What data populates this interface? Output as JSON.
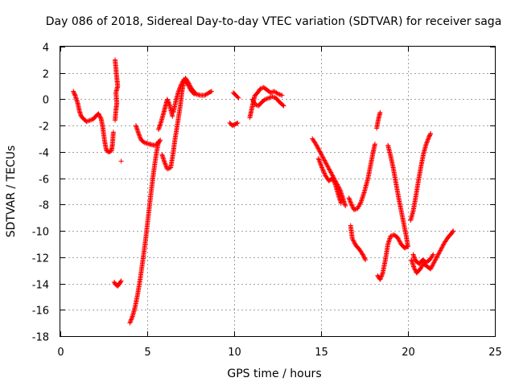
{
  "chart_data": {
    "type": "scatter",
    "title": "Day 086 of 2018, Sidereal Day-to-day VTEC variation (SDTVAR) for receiver saga",
    "xlabel": "GPS time / hours",
    "ylabel": "SDTVAR / TECUs",
    "xlim": [
      0,
      25
    ],
    "ylim": [
      -18,
      4
    ],
    "xticks": [
      0,
      5,
      10,
      15,
      20,
      25
    ],
    "yticks": [
      4,
      2,
      0,
      -2,
      -4,
      -6,
      -8,
      -10,
      -12,
      -14,
      -16,
      -18
    ],
    "grid": true,
    "marker": "+",
    "color": "#ff0000",
    "series": [
      {
        "segments": [
          [
            [
              0.75,
              0.6
            ],
            [
              0.85,
              0.3
            ],
            [
              1.0,
              -0.3
            ],
            [
              1.1,
              -0.9
            ],
            [
              1.2,
              -1.3
            ],
            [
              1.35,
              -1.5
            ],
            [
              1.5,
              -1.7
            ],
            [
              1.7,
              -1.6
            ],
            [
              1.9,
              -1.5
            ],
            [
              2.1,
              -1.2
            ],
            [
              2.2,
              -1.1
            ],
            [
              2.35,
              -1.5
            ],
            [
              2.45,
              -2.2
            ],
            [
              2.55,
              -3.2
            ],
            [
              2.65,
              -3.9
            ],
            [
              2.8,
              -4.0
            ],
            [
              2.95,
              -3.9
            ],
            [
              3.0,
              -3.4
            ],
            [
              3.05,
              -2.5
            ]
          ],
          [
            [
              3.15,
              3.0
            ],
            [
              3.2,
              2.3
            ],
            [
              3.25,
              1.6
            ],
            [
              3.3,
              1.0
            ],
            [
              3.2,
              0.5
            ],
            [
              3.25,
              -0.3
            ],
            [
              3.2,
              -0.8
            ],
            [
              3.15,
              -1.6
            ]
          ],
          [
            [
              3.5,
              -4.7
            ]
          ],
          [
            [
              3.1,
              -13.9
            ],
            [
              3.2,
              -14.1
            ],
            [
              3.3,
              -14.2
            ],
            [
              3.4,
              -14.0
            ],
            [
              3.5,
              -13.8
            ]
          ],
          [
            [
              4.0,
              -17.0
            ],
            [
              4.15,
              -16.5
            ],
            [
              4.3,
              -15.8
            ],
            [
              4.45,
              -14.8
            ],
            [
              4.6,
              -13.6
            ],
            [
              4.75,
              -12.2
            ],
            [
              4.9,
              -10.7
            ],
            [
              5.05,
              -9.0
            ],
            [
              5.2,
              -7.3
            ],
            [
              5.35,
              -5.7
            ],
            [
              5.5,
              -4.3
            ],
            [
              5.65,
              -3.2
            ]
          ],
          [
            [
              4.35,
              -2.0
            ],
            [
              4.5,
              -2.6
            ],
            [
              4.65,
              -3.1
            ],
            [
              4.85,
              -3.3
            ],
            [
              5.1,
              -3.4
            ],
            [
              5.4,
              -3.5
            ],
            [
              5.6,
              -3.4
            ],
            [
              5.75,
              -3.1
            ]
          ],
          [
            [
              5.65,
              -2.3
            ],
            [
              5.8,
              -1.7
            ],
            [
              5.95,
              -1.0
            ],
            [
              6.05,
              -0.5
            ],
            [
              6.15,
              0.0
            ],
            [
              6.3,
              -0.5
            ],
            [
              6.45,
              -1.3
            ]
          ],
          [
            [
              5.85,
              -4.2
            ],
            [
              6.0,
              -4.8
            ],
            [
              6.15,
              -5.3
            ],
            [
              6.35,
              -5.2
            ],
            [
              6.5,
              -4.0
            ],
            [
              6.6,
              -3.0
            ],
            [
              6.75,
              -1.8
            ],
            [
              6.9,
              -0.5
            ],
            [
              7.0,
              0.6
            ],
            [
              7.1,
              1.3
            ],
            [
              7.2,
              1.6
            ],
            [
              7.35,
              1.3
            ],
            [
              7.55,
              0.8
            ],
            [
              7.8,
              0.4
            ],
            [
              8.05,
              0.3
            ],
            [
              8.3,
              0.3
            ],
            [
              8.55,
              0.5
            ],
            [
              8.7,
              0.6
            ]
          ],
          [
            [
              6.5,
              -1.0
            ],
            [
              6.65,
              -0.1
            ],
            [
              6.8,
              0.6
            ],
            [
              6.95,
              1.1
            ],
            [
              7.1,
              1.5
            ],
            [
              7.3,
              1.2
            ],
            [
              7.5,
              0.7
            ],
            [
              7.7,
              0.4
            ]
          ],
          [
            [
              9.75,
              -1.8
            ],
            [
              9.9,
              -2.0
            ],
            [
              10.05,
              -1.9
            ],
            [
              10.2,
              -1.8
            ]
          ],
          [
            [
              9.95,
              0.5
            ],
            [
              10.1,
              0.3
            ],
            [
              10.25,
              0.1
            ]
          ],
          [
            [
              10.9,
              -1.4
            ],
            [
              11.0,
              -0.8
            ],
            [
              11.1,
              -0.2
            ],
            [
              11.2,
              0.3
            ],
            [
              11.35,
              0.5
            ],
            [
              11.5,
              0.8
            ],
            [
              11.7,
              0.9
            ],
            [
              11.9,
              0.7
            ],
            [
              12.1,
              0.5
            ],
            [
              12.3,
              0.6
            ],
            [
              12.55,
              0.4
            ],
            [
              12.75,
              0.3
            ]
          ],
          [
            [
              11.05,
              0.0
            ],
            [
              11.2,
              -0.4
            ],
            [
              11.4,
              -0.5
            ],
            [
              11.6,
              -0.2
            ],
            [
              11.8,
              0.0
            ],
            [
              12.0,
              0.1
            ],
            [
              12.2,
              0.2
            ],
            [
              12.4,
              0.1
            ],
            [
              12.6,
              -0.2
            ],
            [
              12.85,
              -0.5
            ]
          ],
          [
            [
              14.5,
              -3.0
            ],
            [
              14.7,
              -3.4
            ],
            [
              14.9,
              -3.9
            ],
            [
              15.1,
              -4.4
            ],
            [
              15.3,
              -4.9
            ],
            [
              15.5,
              -5.4
            ],
            [
              15.7,
              -5.9
            ],
            [
              15.9,
              -6.4
            ],
            [
              16.1,
              -6.9
            ],
            [
              16.25,
              -7.5
            ],
            [
              16.4,
              -8.1
            ]
          ],
          [
            [
              14.85,
              -4.5
            ],
            [
              15.05,
              -5.2
            ],
            [
              15.25,
              -5.8
            ],
            [
              15.45,
              -6.2
            ],
            [
              15.65,
              -6.0
            ],
            [
              15.8,
              -6.4
            ],
            [
              16.0,
              -7.3
            ],
            [
              16.15,
              -7.9
            ]
          ],
          [
            [
              16.6,
              -7.5
            ],
            [
              16.75,
              -8.0
            ],
            [
              16.9,
              -8.4
            ],
            [
              17.1,
              -8.3
            ],
            [
              17.3,
              -7.8
            ],
            [
              17.5,
              -7.0
            ],
            [
              17.7,
              -6.0
            ],
            [
              17.85,
              -5.0
            ],
            [
              18.0,
              -4.0
            ],
            [
              18.1,
              -3.4
            ]
          ],
          [
            [
              16.7,
              -9.6
            ],
            [
              16.8,
              -10.6
            ],
            [
              17.0,
              -11.1
            ],
            [
              17.2,
              -11.4
            ],
            [
              17.4,
              -11.8
            ],
            [
              17.55,
              -12.2
            ]
          ],
          [
            [
              18.2,
              -2.2
            ],
            [
              18.3,
              -1.5
            ],
            [
              18.4,
              -1.0
            ]
          ],
          [
            [
              18.25,
              -13.4
            ],
            [
              18.4,
              -13.7
            ],
            [
              18.55,
              -13.2
            ],
            [
              18.7,
              -12.2
            ],
            [
              18.85,
              -11.0
            ],
            [
              19.0,
              -10.4
            ],
            [
              19.2,
              -10.3
            ],
            [
              19.4,
              -10.5
            ],
            [
              19.6,
              -11.0
            ],
            [
              19.8,
              -11.3
            ],
            [
              19.95,
              -11.2
            ]
          ],
          [
            [
              18.85,
              -3.5
            ],
            [
              19.0,
              -4.3
            ],
            [
              19.15,
              -5.2
            ],
            [
              19.3,
              -6.3
            ],
            [
              19.45,
              -7.4
            ],
            [
              19.6,
              -8.4
            ],
            [
              19.75,
              -9.4
            ],
            [
              19.9,
              -10.4
            ],
            [
              20.0,
              -11.2
            ]
          ],
          [
            [
              20.15,
              -9.2
            ],
            [
              20.3,
              -8.5
            ],
            [
              20.45,
              -7.4
            ],
            [
              20.6,
              -6.2
            ],
            [
              20.75,
              -5.1
            ],
            [
              20.9,
              -4.1
            ],
            [
              21.05,
              -3.4
            ],
            [
              21.2,
              -2.9
            ],
            [
              21.3,
              -2.6
            ]
          ],
          [
            [
              20.2,
              -12.2
            ],
            [
              20.35,
              -12.8
            ],
            [
              20.5,
              -13.2
            ],
            [
              20.7,
              -12.9
            ],
            [
              20.9,
              -12.5
            ],
            [
              21.1,
              -12.7
            ],
            [
              21.3,
              -12.9
            ],
            [
              21.5,
              -12.4
            ],
            [
              21.7,
              -11.9
            ],
            [
              21.9,
              -11.4
            ],
            [
              22.1,
              -10.9
            ],
            [
              22.3,
              -10.5
            ],
            [
              22.5,
              -10.2
            ],
            [
              22.6,
              -10.0
            ]
          ],
          [
            [
              20.3,
              -11.8
            ],
            [
              20.45,
              -12.3
            ],
            [
              20.65,
              -12.5
            ],
            [
              20.85,
              -12.2
            ],
            [
              21.05,
              -12.4
            ],
            [
              21.25,
              -12.2
            ],
            [
              21.45,
              -11.8
            ]
          ]
        ]
      }
    ]
  }
}
